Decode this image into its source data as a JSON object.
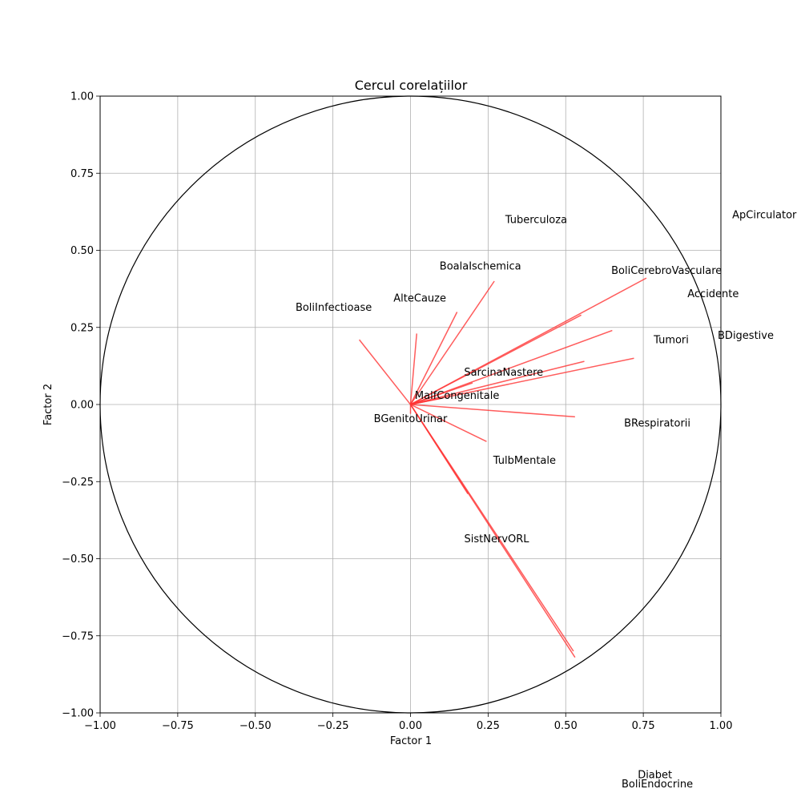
{
  "chart_data": {
    "type": "scatter",
    "title": "Cercul corelațiilor",
    "xlabel": "Factor 1",
    "ylabel": "Factor 2",
    "xlim": [
      -1.0,
      1.0
    ],
    "ylim": [
      -1.0,
      1.0
    ],
    "grid": true,
    "x_ticks": [
      "−1.00",
      "−0.75",
      "−0.50",
      "−0.25",
      "0.00",
      "0.25",
      "0.50",
      "0.75",
      "1.00"
    ],
    "y_ticks": [
      "−1.00",
      "−0.75",
      "−0.50",
      "−0.25",
      "0.00",
      "0.25",
      "0.50",
      "0.75",
      "1.00"
    ],
    "unit_circle": true,
    "arrow_color": "#ff3333",
    "circle_color": "#000000",
    "variables": [
      {
        "name": "ApCirculator",
        "x": 0.76,
        "y": 0.41
      },
      {
        "name": "Tuberculoza",
        "x": 0.27,
        "y": 0.4
      },
      {
        "name": "BoalaIschemica",
        "x": 0.15,
        "y": 0.3
      },
      {
        "name": "BoliCerebroVasculare",
        "x": 0.55,
        "y": 0.29
      },
      {
        "name": "Accidente",
        "x": 0.65,
        "y": 0.24
      },
      {
        "name": "BoliInfectioase",
        "x": -0.165,
        "y": 0.21
      },
      {
        "name": "AlteCauze",
        "x": 0.02,
        "y": 0.23
      },
      {
        "name": "BDigestive",
        "x": 0.72,
        "y": 0.15
      },
      {
        "name": "Tumori",
        "x": 0.56,
        "y": 0.14
      },
      {
        "name": "SarcinaNastere",
        "x": 0.2,
        "y": 0.07
      },
      {
        "name": "MalfCongenitale",
        "x": 0.1,
        "y": 0.02
      },
      {
        "name": "BGenitoUrinar",
        "x": 0.0,
        "y": -0.03
      },
      {
        "name": "BRespiratorii",
        "x": 0.53,
        "y": -0.04
      },
      {
        "name": "TulbMentale",
        "x": 0.245,
        "y": -0.12
      },
      {
        "name": "SistNervORL",
        "x": 0.185,
        "y": -0.29
      },
      {
        "name": "Diabet",
        "x": 0.525,
        "y": -0.8
      },
      {
        "name": "BoliEndocrine",
        "x": 0.53,
        "y": -0.82
      }
    ]
  }
}
